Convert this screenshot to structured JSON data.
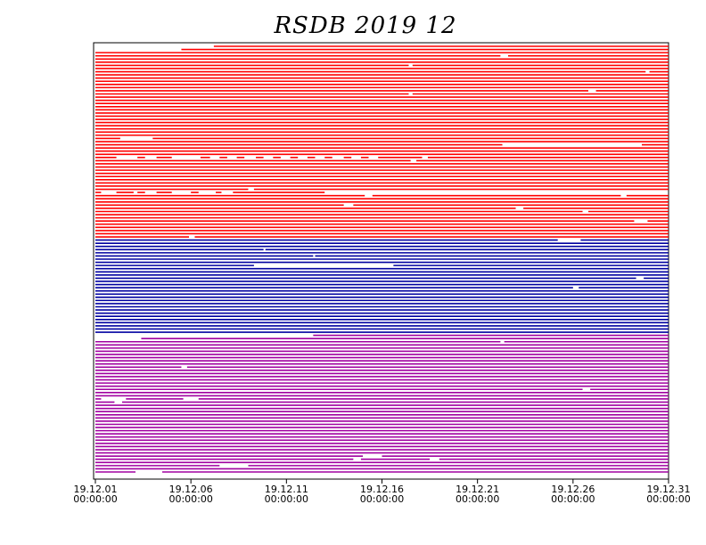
{
  "chart_data": {
    "type": "availability",
    "title": "RSDB  2019  12",
    "xlim": [
      1,
      31
    ],
    "xticks": [
      {
        "value": 1,
        "label": "19.12.01",
        "time": "00:00:00"
      },
      {
        "value": 6,
        "label": "19.12.06",
        "time": "00:00:00"
      },
      {
        "value": 11,
        "label": "19.12.11",
        "time": "00:00:00"
      },
      {
        "value": 16,
        "label": "19.12.16",
        "time": "00:00:00"
      },
      {
        "value": 21,
        "label": "19.12.21",
        "time": "00:00:00"
      },
      {
        "value": 26,
        "label": "19.12.26",
        "time": "00:00:00"
      },
      {
        "value": 31,
        "label": "19.12.31",
        "time": "00:00:00"
      }
    ],
    "groups": [
      {
        "color": "#ff0000",
        "rows": [
          [
            [
              7.2,
              31
            ]
          ],
          [
            [
              5.5,
              31
            ]
          ],
          [
            [
              1,
              31
            ]
          ],
          [
            [
              1,
              22.2
            ],
            [
              22.6,
              31
            ]
          ],
          [
            [
              1,
              31
            ]
          ],
          [
            [
              1,
              31
            ]
          ],
          [
            [
              1,
              17.4
            ],
            [
              17.6,
              31
            ]
          ],
          [
            [
              1,
              31
            ]
          ],
          [
            [
              1,
              29.8
            ],
            [
              30,
              31
            ]
          ],
          [
            [
              1,
              31
            ]
          ],
          [
            [
              1,
              31
            ]
          ],
          [
            [
              1,
              31
            ]
          ],
          [
            [
              1,
              31
            ]
          ],
          [
            [
              1,
              31
            ]
          ],
          [
            [
              1,
              26.8
            ],
            [
              27.2,
              31
            ]
          ],
          [
            [
              1,
              17.4
            ],
            [
              17.6,
              31
            ]
          ],
          [
            [
              1,
              31
            ]
          ],
          [
            [
              1,
              31
            ]
          ],
          [
            [
              1,
              31
            ]
          ],
          [
            [
              1,
              31
            ]
          ],
          [
            [
              1,
              31
            ]
          ],
          [
            [
              1,
              31
            ]
          ],
          [
            [
              1,
              31
            ]
          ],
          [
            [
              1,
              31
            ]
          ],
          [
            [
              1,
              31
            ]
          ],
          [
            [
              1,
              31
            ]
          ],
          [
            [
              1,
              31
            ]
          ],
          [
            [
              1,
              31
            ]
          ],
          [
            [
              1,
              31
            ]
          ],
          [
            [
              1,
              2.3
            ],
            [
              4,
              31
            ]
          ],
          [
            [
              1,
              31
            ]
          ],
          [
            [
              1,
              22.3
            ],
            [
              29.6,
              31
            ]
          ],
          [
            [
              1,
              31
            ]
          ],
          [
            [
              1,
              31
            ]
          ],
          [
            [
              1,
              31
            ]
          ],
          [
            [
              1,
              2.1
            ],
            [
              3.2,
              3.6
            ],
            [
              4.2,
              5
            ],
            [
              6.5,
              7
            ],
            [
              7.5,
              7.9
            ],
            [
              8.4,
              8.8
            ],
            [
              9.4,
              9.8
            ],
            [
              10.3,
              10.7
            ],
            [
              11.2,
              11.6
            ],
            [
              12.1,
              12.5
            ],
            [
              13,
              13.4
            ],
            [
              14,
              14.4
            ],
            [
              14.9,
              15.3
            ],
            [
              15.8,
              18.1
            ],
            [
              18.4,
              31
            ]
          ],
          [
            [
              1,
              17.5
            ],
            [
              17.8,
              31
            ]
          ],
          [
            [
              1,
              31
            ]
          ],
          [
            [
              1,
              31
            ]
          ],
          [
            [
              1,
              31
            ]
          ],
          [
            [
              1,
              31
            ]
          ],
          [
            [
              1,
              31
            ]
          ],
          [
            [
              1,
              31
            ]
          ],
          [
            [
              1,
              31
            ]
          ],
          [
            [
              1,
              31
            ]
          ],
          [
            [
              1,
              9
            ],
            [
              9.3,
              31
            ]
          ],
          [
            [
              1,
              1.3
            ],
            [
              2.1,
              3
            ],
            [
              3.2,
              3.6
            ],
            [
              4.2,
              5
            ],
            [
              6,
              6.4
            ],
            [
              7.3,
              7.6
            ],
            [
              8.2,
              13
            ]
          ],
          [
            [
              1,
              15.1
            ],
            [
              15.5,
              28.5
            ],
            [
              28.8,
              31
            ]
          ],
          [
            [
              1,
              31
            ]
          ],
          [
            [
              1,
              31
            ]
          ],
          [
            [
              1,
              14
            ],
            [
              14.5,
              31
            ]
          ],
          [
            [
              1,
              23
            ],
            [
              23.4,
              31
            ]
          ],
          [
            [
              1,
              26.5
            ],
            [
              26.8,
              31
            ]
          ],
          [
            [
              1,
              31
            ]
          ],
          [
            [
              1,
              31
            ]
          ],
          [
            [
              1,
              29.2
            ],
            [
              29.9,
              31
            ]
          ],
          [
            [
              1,
              31
            ]
          ],
          [
            [
              1,
              31
            ]
          ],
          [
            [
              1,
              31
            ]
          ],
          [
            [
              1,
              31
            ]
          ],
          [
            [
              1,
              5.9
            ],
            [
              6.2,
              31
            ]
          ]
        ]
      },
      {
        "color": "#0000a0",
        "rows": [
          [
            [
              1,
              25.2
            ],
            [
              26.4,
              31
            ]
          ],
          [
            [
              1,
              31
            ]
          ],
          [
            [
              1,
              31
            ]
          ],
          [
            [
              1,
              9.8
            ],
            [
              9.9,
              31
            ]
          ],
          [
            [
              1,
              31
            ]
          ],
          [
            [
              1,
              12.4
            ],
            [
              12.5,
              31
            ]
          ],
          [
            [
              1,
              31
            ]
          ],
          [
            [
              1,
              31
            ]
          ],
          [
            [
              1,
              9.3
            ],
            [
              16.6,
              31
            ]
          ],
          [
            [
              1,
              31
            ]
          ],
          [
            [
              1,
              31
            ]
          ],
          [
            [
              1,
              31
            ]
          ],
          [
            [
              1,
              29.3
            ],
            [
              29.7,
              31
            ]
          ],
          [
            [
              1,
              31
            ]
          ],
          [
            [
              1,
              31
            ]
          ],
          [
            [
              1,
              26
            ],
            [
              26.3,
              31
            ]
          ],
          [
            [
              1,
              31
            ]
          ],
          [
            [
              1,
              31
            ]
          ],
          [
            [
              1,
              31
            ]
          ],
          [
            [
              1,
              31
            ]
          ],
          [
            [
              1,
              31
            ]
          ],
          [
            [
              1,
              31
            ]
          ],
          [
            [
              1,
              31
            ]
          ],
          [
            [
              1,
              31
            ]
          ],
          [
            [
              1,
              31
            ]
          ],
          [
            [
              1,
              31
            ]
          ],
          [
            [
              1,
              31
            ]
          ],
          [
            [
              1,
              31
            ]
          ],
          [
            [
              1,
              31
            ]
          ],
          [
            [
              1,
              31
            ]
          ]
        ]
      },
      {
        "color": "#a000a0",
        "rows": [
          [
            [
              12.4,
              31
            ]
          ],
          [
            [
              3.4,
              31
            ]
          ],
          [
            [
              1,
              22.2
            ],
            [
              22.4,
              31
            ]
          ],
          [
            [
              1,
              31
            ]
          ],
          [
            [
              1,
              31
            ]
          ],
          [
            [
              1,
              31
            ]
          ],
          [
            [
              1,
              31
            ]
          ],
          [
            [
              1,
              31
            ]
          ],
          [
            [
              1,
              31
            ]
          ],
          [
            [
              1,
              31
            ]
          ],
          [
            [
              1,
              5.5
            ],
            [
              5.8,
              31
            ]
          ],
          [
            [
              1,
              31
            ]
          ],
          [
            [
              1,
              31
            ]
          ],
          [
            [
              1,
              31
            ]
          ],
          [
            [
              1,
              31
            ]
          ],
          [
            [
              1,
              31
            ]
          ],
          [
            [
              1,
              31
            ]
          ],
          [
            [
              1,
              26.5
            ],
            [
              26.9,
              31
            ]
          ],
          [
            [
              1,
              31
            ]
          ],
          [
            [
              1,
              31
            ]
          ],
          [
            [
              1,
              1.3
            ],
            [
              2.6,
              5.6
            ],
            [
              6.4,
              31
            ]
          ],
          [
            [
              1,
              2
            ],
            [
              2.4,
              31
            ]
          ],
          [
            [
              1,
              31
            ]
          ],
          [
            [
              1,
              31
            ]
          ],
          [
            [
              1,
              31
            ]
          ],
          [
            [
              1,
              31
            ]
          ],
          [
            [
              1,
              31
            ]
          ],
          [
            [
              1,
              31
            ]
          ],
          [
            [
              1,
              31
            ]
          ],
          [
            [
              1,
              31
            ]
          ],
          [
            [
              1,
              31
            ]
          ],
          [
            [
              1,
              31
            ]
          ],
          [
            [
              1,
              31
            ]
          ],
          [
            [
              1,
              31
            ]
          ],
          [
            [
              1,
              31
            ]
          ],
          [
            [
              1,
              31
            ]
          ],
          [
            [
              1,
              31
            ]
          ],
          [
            [
              1,
              31
            ]
          ],
          [
            [
              1,
              15
            ],
            [
              16,
              31
            ]
          ],
          [
            [
              1,
              14.5
            ],
            [
              14.9,
              18.5
            ],
            [
              19,
              31
            ]
          ],
          [
            [
              1,
              31
            ]
          ],
          [
            [
              1,
              7.5
            ],
            [
              9,
              31
            ]
          ],
          [
            [
              1,
              31
            ]
          ],
          [
            [
              1,
              3.1
            ],
            [
              4.5,
              31
            ]
          ]
        ]
      }
    ]
  }
}
